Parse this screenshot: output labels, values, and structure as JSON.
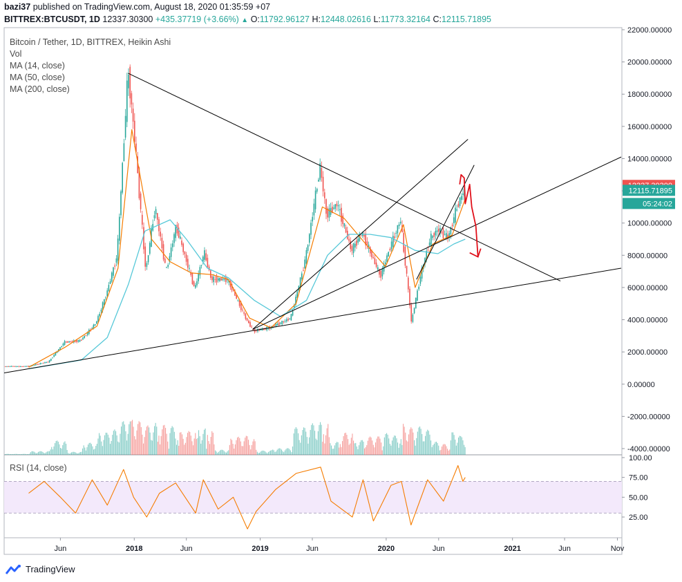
{
  "header": {
    "publisher": "bazi37",
    "published_text": "published on TradingView.com, August 18, 2020 01:35:59 +07",
    "symbol": "BITTREX:BTCUSDT, 1D",
    "last": "12337.30300",
    "change": "+435.37719 (+3.66%)",
    "change_arrow": "▲",
    "open_label": "O:",
    "open": "11792.96127",
    "high_label": "H:",
    "high": "12448.02616",
    "low_label": "L:",
    "low": "11773.32164",
    "close_label": "C:",
    "close": "12115.71895"
  },
  "legend": {
    "title": "Bitcoin / Tether, 1D, BITTREX, Heikin Ashi",
    "vol": "Vol",
    "ma14": "MA (14, close)",
    "ma50": "MA (50, close)",
    "ma200": "MA (200, close)",
    "rsi": "RSI (14, close)"
  },
  "price_badges": {
    "last": "12337.30300",
    "close": "12115.71895",
    "countdown": "05:24:02"
  },
  "footer": {
    "brand": "TradingView"
  },
  "colors": {
    "up": "#26a69a",
    "down": "#ef5350",
    "ma14": "#f57c00",
    "ma50": "#56c8d8",
    "rsi": "#f57c00",
    "rsi_band": "#f3e9fb",
    "arrow": "#e0101a",
    "trendline": "#000000",
    "badge_last": "#ef5350",
    "badge_close": "#26a69a"
  },
  "chart_data": {
    "type": "line",
    "price_axis": {
      "ticks": [
        22000,
        20000,
        18000,
        16000,
        14000,
        12000,
        10000,
        8000,
        6000,
        4000,
        2000,
        0,
        -2000,
        -4000
      ],
      "tick_labels": [
        "22000.00000",
        "20000.00000",
        "18000.00000",
        "16000.00000",
        "14000.00000",
        "12000.00000",
        "10000.00000",
        "8000.00000",
        "6000.00000",
        "4000.00000",
        "2000.00000",
        "0.00000",
        "-2000.00000",
        "-4000.00000"
      ]
    },
    "rsi_axis": {
      "ticks": [
        100,
        75,
        50,
        25
      ],
      "tick_labels": [
        "100.00",
        "75.00",
        "50.00",
        "25.00"
      ],
      "band": [
        30,
        70
      ]
    },
    "time_axis": {
      "ticks": [
        "2017-06-01",
        "2018-01-01",
        "2018-06-01",
        "2019-01-01",
        "2019-06-01",
        "2020-01-01",
        "2020-06-01",
        "2021-01-01",
        "2021-06-01",
        "2021-11-01"
      ],
      "tick_labels": [
        "Jun",
        "2018",
        "Jun",
        "2019",
        "Jun",
        "2020",
        "Jun",
        "2021",
        "Jun",
        "Nov"
      ],
      "bold": [
        false,
        true,
        false,
        true,
        false,
        true,
        false,
        true,
        false,
        false
      ]
    },
    "series": [
      {
        "name": "Heikin Ashi close (approx.)",
        "x": [
          "2017-03-01",
          "2017-05-01",
          "2017-06-15",
          "2017-08-01",
          "2017-09-15",
          "2017-10-15",
          "2017-11-15",
          "2017-12-17",
          "2018-01-10",
          "2018-02-06",
          "2018-03-05",
          "2018-04-06",
          "2018-05-05",
          "2018-06-28",
          "2018-07-25",
          "2018-08-15",
          "2018-10-01",
          "2018-11-25",
          "2018-12-15",
          "2019-02-01",
          "2019-04-02",
          "2019-05-15",
          "2019-06-26",
          "2019-07-15",
          "2019-08-15",
          "2019-09-25",
          "2019-10-26",
          "2019-12-18",
          "2020-01-15",
          "2020-02-14",
          "2020-03-12",
          "2020-03-16",
          "2020-04-15",
          "2020-05-10",
          "2020-06-01",
          "2020-07-01",
          "2020-07-27",
          "2020-08-17"
        ],
        "y": [
          1100,
          1400,
          2600,
          2700,
          3800,
          5600,
          8000,
          19500,
          14000,
          7000,
          11000,
          7000,
          9800,
          5900,
          8200,
          6500,
          6500,
          4000,
          3300,
          3500,
          4100,
          7800,
          13500,
          10500,
          11200,
          8300,
          9400,
          6700,
          8500,
          10200,
          5000,
          3800,
          7000,
          9000,
          9600,
          9100,
          11000,
          12100
        ]
      },
      {
        "name": "MA (14, close) (approx.)",
        "x": [
          "2017-03-01",
          "2017-06-15",
          "2017-09-15",
          "2017-11-15",
          "2017-12-25",
          "2018-02-20",
          "2018-04-15",
          "2018-06-15",
          "2018-08-15",
          "2018-10-01",
          "2018-12-01",
          "2019-02-01",
          "2019-04-15",
          "2019-06-30",
          "2019-09-01",
          "2019-10-30",
          "2019-12-30",
          "2020-02-20",
          "2020-03-25",
          "2020-05-15",
          "2020-07-10",
          "2020-08-17"
        ],
        "y": [
          1050,
          2300,
          3600,
          7200,
          15800,
          9000,
          7600,
          6900,
          6800,
          6500,
          4100,
          3500,
          5000,
          11000,
          10300,
          8800,
          7300,
          9900,
          6000,
          8700,
          9250,
          11500
        ]
      },
      {
        "name": "MA (50, close) (approx.)",
        "x": [
          "2017-03-01",
          "2017-08-01",
          "2017-10-15",
          "2017-12-15",
          "2018-02-01",
          "2018-04-15",
          "2018-06-01",
          "2018-08-01",
          "2018-10-01",
          "2018-12-15",
          "2019-03-01",
          "2019-05-15",
          "2019-07-15",
          "2019-09-15",
          "2019-11-15",
          "2020-01-15",
          "2020-03-25",
          "2020-05-30",
          "2020-07-15",
          "2020-08-17"
        ],
        "y": [
          950,
          1500,
          2900,
          6200,
          9500,
          10200,
          9000,
          7200,
          6600,
          5200,
          4200,
          5200,
          8000,
          9300,
          9300,
          9100,
          8300,
          8100,
          8700,
          9000
        ]
      },
      {
        "name": "RSI (14, close) (approx.)",
        "x": [
          "2017-03-01",
          "2017-04-15",
          "2017-06-01",
          "2017-07-15",
          "2017-09-01",
          "2017-10-15",
          "2017-12-01",
          "2017-12-30",
          "2018-02-06",
          "2018-03-15",
          "2018-05-01",
          "2018-06-28",
          "2018-07-20",
          "2018-09-01",
          "2018-10-15",
          "2018-11-25",
          "2018-12-20",
          "2019-02-15",
          "2019-04-15",
          "2019-06-25",
          "2019-07-25",
          "2019-09-25",
          "2019-10-26",
          "2019-11-25",
          "2020-01-15",
          "2020-02-14",
          "2020-03-13",
          "2020-04-30",
          "2020-06-15",
          "2020-07-27",
          "2020-08-10",
          "2020-08-17"
        ],
        "y": [
          55,
          70,
          50,
          30,
          72,
          40,
          85,
          50,
          25,
          55,
          68,
          30,
          72,
          35,
          50,
          10,
          32,
          60,
          80,
          88,
          45,
          25,
          72,
          20,
          65,
          70,
          15,
          72,
          45,
          90,
          70,
          75
        ]
      }
    ],
    "volume_note": "histogram bars under price, tallest around Dec 2017–Feb 2018",
    "trendlines": [
      {
        "from": [
          "2017-12-14",
          19300
        ],
        "to": [
          "2021-05-20",
          6400
        ]
      },
      {
        "from": [
          "2016-12-20",
          700
        ],
        "to": [
          "2021-11-12",
          7200
        ]
      },
      {
        "from": [
          "2018-12-10",
          3400
        ],
        "to": [
          "2021-11-12",
          14100
        ]
      },
      {
        "from": [
          "2018-12-10",
          3400
        ],
        "to": [
          "2020-08-25",
          15200
        ]
      },
      {
        "from": [
          "2020-03-29",
          6500
        ],
        "to": [
          "2020-09-12",
          13600
        ]
      }
    ],
    "projection_arrow": {
      "x": [
        "2020-08-01",
        "2020-08-05",
        "2020-08-14",
        "2020-08-17",
        "2020-08-30",
        "2020-09-05",
        "2020-09-10",
        "2020-09-17",
        "2020-09-23"
      ],
      "y": [
        12400,
        13000,
        12800,
        11200,
        12400,
        11000,
        10500,
        9800,
        7900
      ]
    }
  }
}
